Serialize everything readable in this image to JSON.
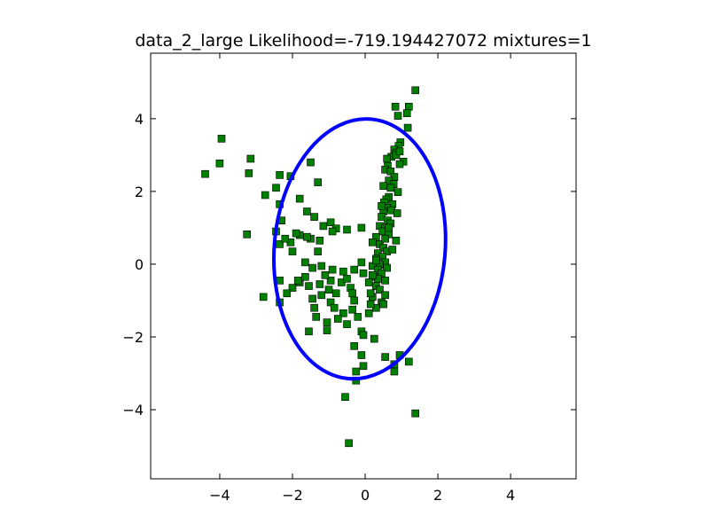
{
  "chart_data": {
    "type": "scatter",
    "title": "data_2_large Likelihood=-719.194427072 mixtures=1",
    "xlabel": "",
    "ylabel": "",
    "xlim": [
      -5.9,
      5.8
    ],
    "ylim": [
      -5.9,
      5.8
    ],
    "grid": false,
    "legend": "none",
    "x_ticks": [
      -4,
      -2,
      0,
      2,
      4
    ],
    "y_ticks": [
      -4,
      -2,
      0,
      2,
      4
    ],
    "x_tick_labels": [
      "−4",
      "−2",
      "0",
      "2",
      "4"
    ],
    "y_tick_labels": [
      "−4",
      "−2",
      "0",
      "2",
      "4"
    ],
    "marker_color": "#007f00",
    "marker_edge_color": "#000000",
    "ellipse_color": "#0000ff",
    "ellipse": {
      "cx": -0.15,
      "cy": 0.42,
      "rx": 2.35,
      "ry": 3.58,
      "angle_deg": 5
    },
    "points": [
      [
        1.38,
        4.78
      ],
      [
        0.83,
        4.33
      ],
      [
        1.2,
        4.33
      ],
      [
        1.15,
        4.15
      ],
      [
        0.9,
        4.08
      ],
      [
        1.17,
        3.75
      ],
      [
        -3.95,
        3.45
      ],
      [
        0.97,
        3.35
      ],
      [
        0.92,
        3.25
      ],
      [
        0.8,
        3.15
      ],
      [
        0.85,
        3.05
      ],
      [
        0.72,
        2.95
      ],
      [
        1.05,
        2.82
      ],
      [
        0.95,
        2.75
      ],
      [
        0.62,
        2.7
      ],
      [
        0.55,
        2.6
      ],
      [
        0.7,
        2.55
      ],
      [
        0.8,
        2.4
      ],
      [
        0.65,
        2.3
      ],
      [
        0.78,
        2.2
      ],
      [
        0.7,
        2.1
      ],
      [
        0.9,
        1.98
      ],
      [
        0.65,
        1.85
      ],
      [
        0.58,
        1.78
      ],
      [
        0.52,
        1.7
      ],
      [
        0.75,
        1.65
      ],
      [
        0.6,
        1.55
      ],
      [
        0.72,
        1.48
      ],
      [
        0.5,
        1.45
      ],
      [
        0.88,
        1.4
      ],
      [
        0.45,
        1.3
      ],
      [
        0.62,
        1.2
      ],
      [
        0.7,
        1.12
      ],
      [
        0.4,
        1.05
      ],
      [
        0.55,
        0.98
      ],
      [
        0.48,
        0.9
      ],
      [
        0.65,
        0.82
      ],
      [
        0.3,
        0.75
      ],
      [
        0.85,
        0.65
      ],
      [
        0.4,
        0.55
      ],
      [
        0.5,
        0.45
      ],
      [
        0.6,
        0.35
      ],
      [
        0.35,
        0.3
      ],
      [
        0.48,
        0.2
      ],
      [
        0.3,
        0.15
      ],
      [
        0.55,
        0.05
      ],
      [
        0.4,
        -0.02
      ],
      [
        0.2,
        -0.05
      ],
      [
        0.6,
        -0.1
      ],
      [
        0.35,
        -0.15
      ],
      [
        0.45,
        -0.25
      ],
      [
        0.25,
        -0.35
      ],
      [
        0.55,
        -0.45
      ],
      [
        0.3,
        -0.6
      ],
      [
        0.4,
        -0.7
      ],
      [
        0.55,
        -0.85
      ],
      [
        0.2,
        -0.9
      ],
      [
        0.45,
        -1.05
      ],
      [
        0.3,
        -1.2
      ],
      [
        0.1,
        -1.35
      ],
      [
        -0.1,
        -1.85
      ],
      [
        -0.05,
        -1.95
      ],
      [
        0.25,
        -2.05
      ],
      [
        -0.3,
        -2.25
      ],
      [
        -0.1,
        -2.5
      ],
      [
        0.55,
        -2.55
      ],
      [
        0.95,
        -2.5
      ],
      [
        0.8,
        -2.75
      ],
      [
        1.2,
        -2.68
      ],
      [
        -0.05,
        -2.8
      ],
      [
        -0.25,
        -2.95
      ],
      [
        0.8,
        -2.95
      ],
      [
        -0.25,
        -3.2
      ],
      [
        -0.55,
        -3.65
      ],
      [
        1.38,
        -4.1
      ],
      [
        -0.45,
        -4.92
      ],
      [
        -4.4,
        2.48
      ],
      [
        -4.0,
        2.77
      ],
      [
        -3.15,
        2.9
      ],
      [
        -3.2,
        2.5
      ],
      [
        -2.75,
        1.9
      ],
      [
        -2.45,
        2.1
      ],
      [
        -2.35,
        2.45
      ],
      [
        -2.05,
        2.42
      ],
      [
        -1.8,
        1.8
      ],
      [
        -1.5,
        2.8
      ],
      [
        -1.3,
        2.25
      ],
      [
        -2.35,
        1.65
      ],
      [
        -2.3,
        1.2
      ],
      [
        -1.6,
        1.45
      ],
      [
        -1.4,
        1.3
      ],
      [
        -1.15,
        1.05
      ],
      [
        -0.95,
        1.15
      ],
      [
        -0.8,
        0.98
      ],
      [
        -0.1,
        1.0
      ],
      [
        -2.45,
        0.9
      ],
      [
        -2.05,
        0.6
      ],
      [
        -1.8,
        0.8
      ],
      [
        -1.5,
        0.7
      ],
      [
        -1.25,
        0.65
      ],
      [
        -3.25,
        0.82
      ],
      [
        -2.35,
        0.55
      ],
      [
        -2.0,
        0.35
      ],
      [
        -1.65,
        0.05
      ],
      [
        -1.45,
        -0.1
      ],
      [
        -1.2,
        -0.05
      ],
      [
        -0.9,
        -0.15
      ],
      [
        -0.6,
        -0.2
      ],
      [
        -0.3,
        -0.15
      ],
      [
        -0.1,
        0.05
      ],
      [
        -0.05,
        -0.25
      ],
      [
        -2.35,
        -0.45
      ],
      [
        -2.0,
        -0.65
      ],
      [
        -1.8,
        -0.5
      ],
      [
        -1.55,
        -0.6
      ],
      [
        -1.25,
        -0.55
      ],
      [
        -0.95,
        -0.45
      ],
      [
        -0.65,
        -0.5
      ],
      [
        -0.4,
        -0.65
      ],
      [
        -2.8,
        -0.9
      ],
      [
        -2.35,
        -1.05
      ],
      [
        -1.45,
        -0.95
      ],
      [
        -1.2,
        -0.85
      ],
      [
        -0.95,
        -1.05
      ],
      [
        -0.6,
        -1.35
      ],
      [
        -0.35,
        -1.25
      ],
      [
        -1.35,
        -1.45
      ],
      [
        -1.05,
        -1.6
      ],
      [
        -0.75,
        -1.5
      ],
      [
        -1.55,
        -1.85
      ],
      [
        -1.05,
        -1.82
      ],
      [
        -0.5,
        -1.65
      ],
      [
        -1.65,
        -0.35
      ],
      [
        -1.85,
        -0.45
      ],
      [
        -0.8,
        -0.8
      ],
      [
        -1.1,
        -0.3
      ],
      [
        -0.3,
        -1.0
      ],
      [
        -0.5,
        -0.4
      ],
      [
        -1.4,
        -1.2
      ],
      [
        -0.85,
        -1.2
      ],
      [
        -2.15,
        -0.8
      ],
      [
        -1.3,
        0.35
      ],
      [
        -1.6,
        0.75
      ],
      [
        -1.9,
        0.85
      ],
      [
        -2.2,
        0.7
      ],
      [
        -0.9,
        0.9
      ],
      [
        -0.5,
        0.95
      ],
      [
        0.2,
        0.6
      ],
      [
        0.3,
        0.1
      ],
      [
        0.1,
        -0.5
      ],
      [
        0.15,
        -0.8
      ],
      [
        0.65,
        1.0
      ],
      [
        0.75,
        0.4
      ],
      [
        0.5,
        2.15
      ],
      [
        0.45,
        1.6
      ],
      [
        0.6,
        2.9
      ],
      [
        0.85,
        3.0
      ],
      [
        0.95,
        3.1
      ],
      [
        0.55,
        0.7
      ],
      [
        0.35,
        -0.4
      ],
      [
        0.5,
        -1.1
      ],
      [
        -0.35,
        -0.8
      ],
      [
        0.15,
        -1.1
      ],
      [
        -0.2,
        -1.45
      ],
      [
        -1.0,
        -0.7
      ],
      [
        0.2,
        -0.3
      ]
    ]
  }
}
